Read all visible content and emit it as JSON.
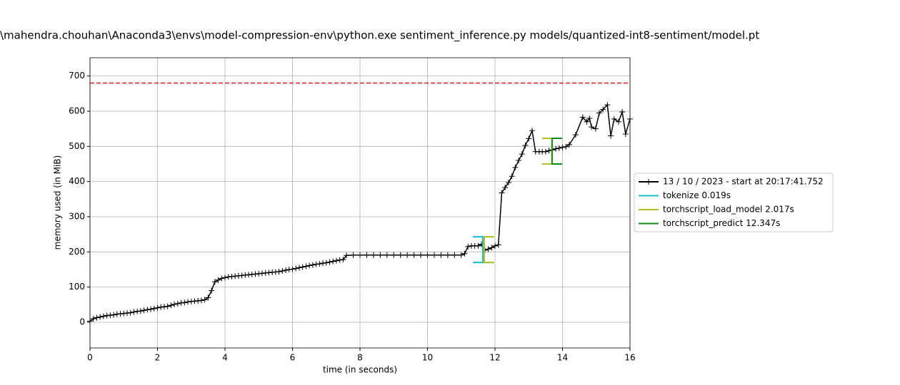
{
  "chart_data": {
    "type": "line",
    "title": "\\mahendra.chouhan\\Anaconda3\\envs\\model-compression-env\\python.exe sentiment_inference.py models/quantized-int8-sentiment/model.pt",
    "x_label": "time (in seconds)",
    "y_label": "memory used (in MiB)",
    "xlim": [
      0,
      16
    ],
    "ylim": [
      -73,
      752
    ],
    "xticks": [
      0,
      2,
      4,
      6,
      8,
      10,
      12,
      14,
      16
    ],
    "yticks": [
      0,
      100,
      200,
      300,
      400,
      500,
      600,
      700
    ],
    "grid": true,
    "legend": "right",
    "hline": {
      "value": 680,
      "color": "#e41a1c"
    },
    "series": [
      {
        "name": "13 / 10 / 2023 - start at 20:17:41.752",
        "color": "#000000",
        "x": [
          0,
          0.1,
          0.2,
          0.3,
          0.4,
          0.5,
          0.6,
          0.7,
          0.8,
          0.9,
          1.0,
          1.1,
          1.2,
          1.3,
          1.4,
          1.5,
          1.6,
          1.7,
          1.8,
          1.9,
          2.0,
          2.1,
          2.2,
          2.3,
          2.4,
          2.5,
          2.6,
          2.7,
          2.8,
          2.9,
          3.0,
          3.1,
          3.2,
          3.3,
          3.4,
          3.5,
          3.6,
          3.7,
          3.8,
          3.9,
          4.0,
          4.1,
          4.2,
          4.3,
          4.4,
          4.5,
          4.6,
          4.7,
          4.8,
          4.9,
          5.0,
          5.1,
          5.2,
          5.3,
          5.4,
          5.5,
          5.6,
          5.7,
          5.8,
          5.9,
          6.0,
          6.1,
          6.2,
          6.3,
          6.4,
          6.5,
          6.6,
          6.7,
          6.8,
          6.9,
          7.0,
          7.1,
          7.2,
          7.3,
          7.4,
          7.5,
          7.6,
          7.8,
          8.0,
          8.2,
          8.4,
          8.6,
          8.8,
          9.0,
          9.2,
          9.4,
          9.6,
          9.8,
          10.0,
          10.2,
          10.4,
          10.6,
          10.8,
          11.0,
          11.1,
          11.2,
          11.3,
          11.4,
          11.5,
          11.6,
          11.7,
          11.8,
          11.9,
          12.0,
          12.1,
          12.2,
          12.3,
          12.4,
          12.5,
          12.6,
          12.7,
          12.8,
          12.9,
          13.0,
          13.1,
          13.2,
          13.31,
          13.4,
          13.5,
          13.6,
          13.7,
          13.8,
          13.9,
          14.0,
          14.1,
          14.2,
          14.39,
          14.6,
          14.72,
          14.8,
          14.86,
          14.98,
          15.09,
          15.2,
          15.33,
          15.43,
          15.53,
          15.66,
          15.77,
          15.87,
          16.0
        ],
        "values": [
          3,
          10,
          13,
          15,
          17,
          19,
          20,
          21,
          23,
          24,
          25,
          26,
          27,
          29,
          31,
          32,
          34,
          36,
          37,
          39,
          41,
          43,
          44,
          45,
          48,
          51,
          53,
          55,
          56,
          58,
          59,
          60,
          61,
          62,
          64,
          70,
          90,
          115,
          120,
          125,
          127,
          129,
          130,
          131,
          132,
          133,
          134,
          135,
          136,
          137,
          138,
          139,
          140,
          141,
          142,
          143,
          144,
          146,
          148,
          150,
          151,
          153,
          155,
          157,
          159,
          161,
          163,
          165,
          166,
          168,
          169,
          171,
          173,
          175,
          177,
          178,
          190,
          191,
          191,
          191,
          191,
          191,
          191,
          191,
          191,
          191,
          191,
          191,
          191,
          191,
          191,
          191,
          191,
          191,
          195,
          215,
          217,
          217,
          217,
          222,
          205,
          208,
          212,
          217,
          220,
          368,
          383,
          397,
          415,
          440,
          460,
          478,
          503,
          522,
          545,
          485,
          485,
          485,
          485,
          488,
          490,
          493,
          495,
          497,
          499,
          505,
          533,
          583,
          570,
          580,
          555,
          550,
          595,
          605,
          618,
          530,
          578,
          570,
          598,
          535,
          578
        ]
      }
    ],
    "functions": [
      {
        "name": "tokenize 0.019s",
        "color": "#17becf",
        "start": 11.64,
        "end": 11.64,
        "start_range": [
          170,
          243
        ],
        "end_range": [
          170,
          243
        ]
      },
      {
        "name": "torchscript_load_model 2.017s",
        "color": "#bcbd22",
        "start": 11.68,
        "end": 13.69,
        "start_range": [
          170,
          243
        ],
        "end_range": [
          450,
          523
        ]
      },
      {
        "name": "torchscript_predict 12.347s",
        "color": "#138a13",
        "start": 13.69,
        "end": null,
        "start_range": [
          450,
          523
        ],
        "end_range": null
      }
    ]
  }
}
